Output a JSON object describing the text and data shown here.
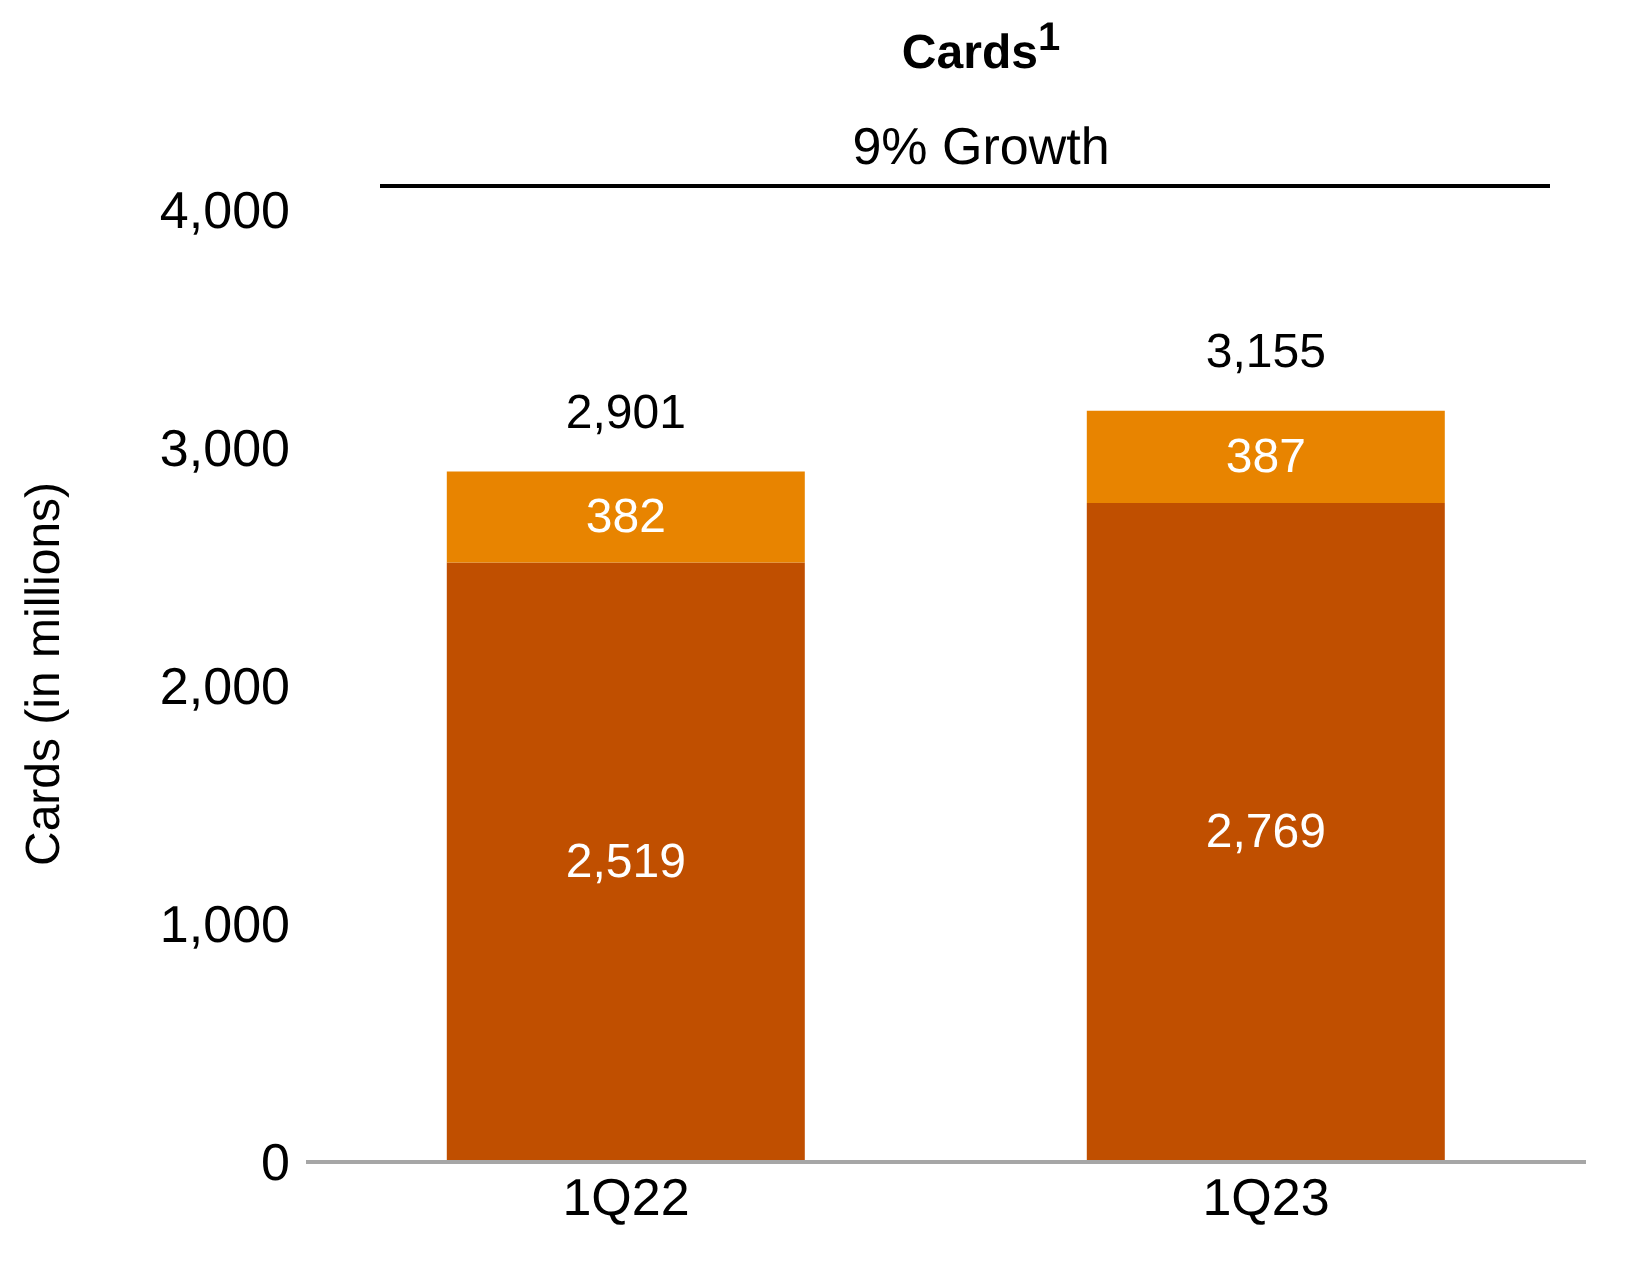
{
  "chart_data": {
    "type": "bar",
    "title": "Cards$^{1}$",
    "ylabel": "Cards (in millions)",
    "annotations": [
      "9% Growth"
    ],
    "categories": [
      "1Q22",
      "1Q23"
    ],
    "series": [
      {
        "color": "#c04f00",
        "values": [
          2519,
          2769
        ],
        "value_labels": [
          "2,519",
          "2,769"
        ]
      },
      {
        "color": "#e88400",
        "values": [
          382,
          387
        ],
        "value_labels": [
          "382",
          "387"
        ]
      }
    ],
    "stacked": true,
    "totals": [
      "2,901",
      "3,155"
    ],
    "ylim": [
      0,
      4000
    ],
    "yticks": [
      0,
      {
        "value": 1000,
        "label": "1,000"
      },
      {
        "value": 2000,
        "label": "2,000"
      },
      {
        "value": 3000,
        "label": "3,000"
      },
      {
        "value": 4000,
        "label": "4,000"
      }
    ],
    "grid": false,
    "legend": false
  }
}
